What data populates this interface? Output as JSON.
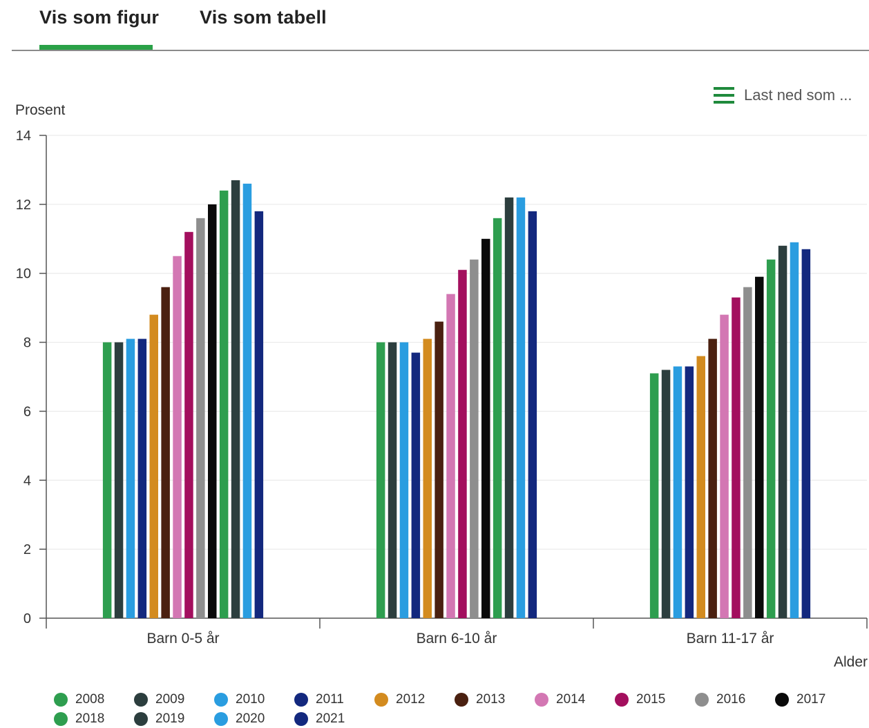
{
  "tabs": [
    {
      "label": "Vis som figur",
      "active": true
    },
    {
      "label": "Vis som tabell",
      "active": false
    }
  ],
  "download": {
    "label": "Last ned som ...",
    "icon": "menu-icon",
    "icon_color": "#1f8a3c"
  },
  "accent_color": "#2aa147",
  "chart_data": {
    "type": "bar",
    "ylabel": "Prosent",
    "xlabel": "Alder",
    "ylim": [
      0,
      14
    ],
    "yticks": [
      0,
      2,
      4,
      6,
      8,
      10,
      12,
      14
    ],
    "grid": true,
    "legend_placement": "bottom",
    "categories": [
      "Barn 0-5 år",
      "Barn 6-10 år",
      "Barn 11-17 år"
    ],
    "series": [
      {
        "name": "2008",
        "color": "#2e9e4f",
        "values": [
          8.0,
          8.0,
          7.1
        ]
      },
      {
        "name": "2009",
        "color": "#2c3e3e",
        "values": [
          8.0,
          8.0,
          7.2
        ]
      },
      {
        "name": "2010",
        "color": "#2a9de0",
        "values": [
          8.1,
          8.0,
          7.3
        ]
      },
      {
        "name": "2011",
        "color": "#13287e",
        "values": [
          8.1,
          7.7,
          7.3
        ]
      },
      {
        "name": "2012",
        "color": "#d38b1f",
        "values": [
          8.8,
          8.1,
          7.6
        ]
      },
      {
        "name": "2013",
        "color": "#4a2010",
        "values": [
          9.6,
          8.6,
          8.1
        ]
      },
      {
        "name": "2014",
        "color": "#d377b3",
        "values": [
          10.5,
          9.4,
          8.8
        ]
      },
      {
        "name": "2015",
        "color": "#a30f5e",
        "values": [
          11.2,
          10.1,
          9.3
        ]
      },
      {
        "name": "2016",
        "color": "#8e8e8e",
        "values": [
          11.6,
          10.4,
          9.6
        ]
      },
      {
        "name": "2017",
        "color": "#0a0a0a",
        "values": [
          12.0,
          11.0,
          9.9
        ]
      },
      {
        "name": "2018",
        "color": "#2e9e4f",
        "values": [
          12.4,
          11.6,
          10.4
        ]
      },
      {
        "name": "2019",
        "color": "#2c3e3e",
        "values": [
          12.7,
          12.2,
          10.8
        ]
      },
      {
        "name": "2020",
        "color": "#2a9de0",
        "values": [
          12.6,
          12.2,
          10.9
        ]
      },
      {
        "name": "2021",
        "color": "#13287e",
        "values": [
          11.8,
          11.8,
          10.7
        ]
      }
    ]
  }
}
